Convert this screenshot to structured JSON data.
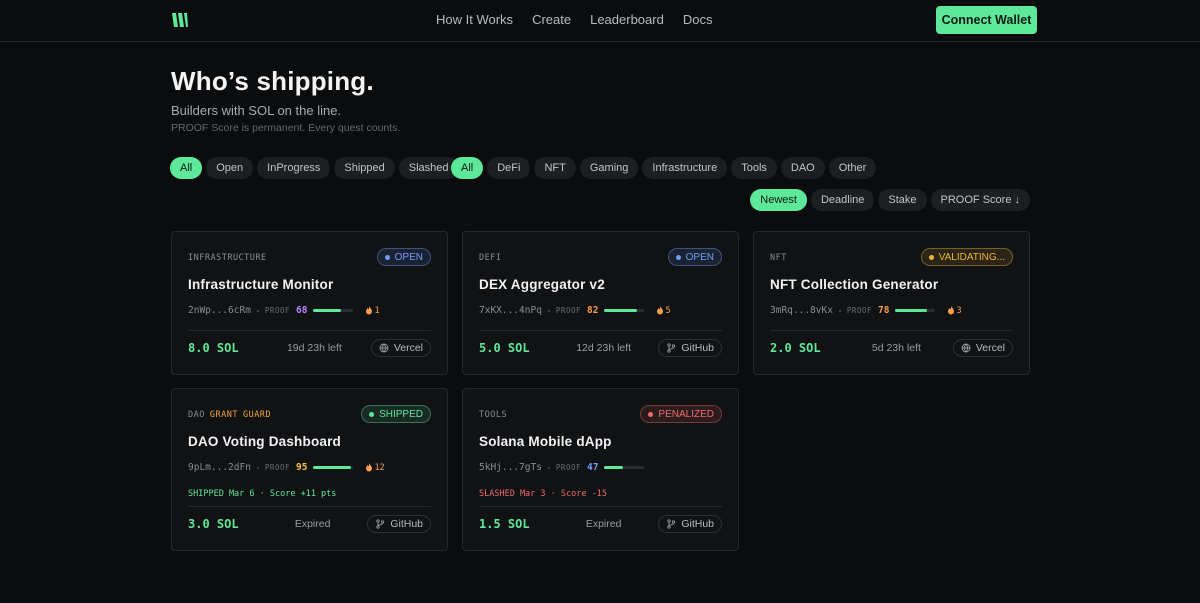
{
  "nav": {
    "links": [
      "How It Works",
      "Create",
      "Leaderboard",
      "Docs"
    ],
    "button": "Connect Wallet"
  },
  "hero": {
    "title": "Who’s shipping.",
    "subtitle": "Builders with SOL on the line.",
    "note": "PROOF Score is permanent. Every quest counts."
  },
  "filters": {
    "status": [
      "All",
      "Open",
      "InProgress",
      "Shipped",
      "Slashed"
    ],
    "category": [
      "All",
      "DeFi",
      "NFT",
      "Gaming",
      "Infrastructure",
      "Tools",
      "DAO",
      "Other"
    ],
    "sort": [
      "Newest",
      "Deadline",
      "Stake",
      "PROOF Score ↓"
    ]
  },
  "cards": [
    {
      "category": "INFRASTRUCTURE",
      "tags": [],
      "status": "OPEN",
      "status_color": "#6f9cff",
      "title": "Infrastructure Monitor",
      "wallet": "2nWp...6cRm",
      "proof_label": "PROOF",
      "proof": 68,
      "proof_color": "#b884ff",
      "streak": 1,
      "result": null,
      "result_color": null,
      "stake": "8.0 SOL",
      "time": "19d 23h left",
      "link": "Vercel",
      "link_icon": "globe"
    },
    {
      "category": "DEFI",
      "tags": [],
      "status": "OPEN",
      "status_color": "#6f9cff",
      "title": "DEX Aggregator v2",
      "wallet": "7xKX...4nPq",
      "proof_label": "PROOF",
      "proof": 82,
      "proof_color": "#f59e4b",
      "streak": 5,
      "result": null,
      "result_color": null,
      "stake": "5.0 SOL",
      "time": "12d 23h left",
      "link": "GitHub",
      "link_icon": "branch"
    },
    {
      "category": "NFT",
      "tags": [],
      "status": "VALIDATING...",
      "status_color": "#f2b53a",
      "title": "NFT Collection Generator",
      "wallet": "3mRq...8vKx",
      "proof_label": "PROOF",
      "proof": 78,
      "proof_color": "#f59e4b",
      "streak": 3,
      "result": null,
      "result_color": null,
      "stake": "2.0 SOL",
      "time": "5d 23h left",
      "link": "Vercel",
      "link_icon": "globe"
    },
    {
      "category": "DAO",
      "tags": [
        "GRANT",
        "GUARD"
      ],
      "status": "SHIPPED",
      "status_color": "#5ee89a",
      "title": "DAO Voting Dashboard",
      "wallet": "9pLm...2dFn",
      "proof_label": "PROOF",
      "proof": 95,
      "proof_color": "#f5c542",
      "streak": 12,
      "result": "SHIPPED Mar 6 · Score +11 pts",
      "result_color": "#5ee89a",
      "stake": "3.0 SOL",
      "time": "Expired",
      "link": "GitHub",
      "link_icon": "branch"
    },
    {
      "category": "TOOLS",
      "tags": [],
      "status": "PENALIZED",
      "status_color": "#f06a6a",
      "title": "Solana Mobile dApp",
      "wallet": "5kHj...7gTs",
      "proof_label": "PROOF",
      "proof": 47,
      "proof_color": "#6f9cff",
      "streak": null,
      "result": "SLASHED Mar 3 · Score -15",
      "result_color": "#f06a6a",
      "stake": "1.5 SOL",
      "time": "Expired",
      "link": "GitHub",
      "link_icon": "branch"
    }
  ]
}
